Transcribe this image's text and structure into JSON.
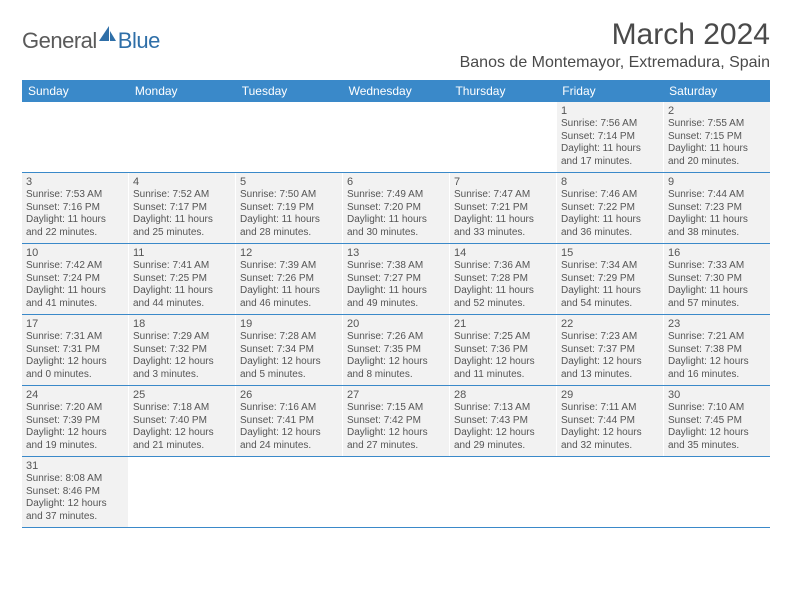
{
  "logo": {
    "text1": "General",
    "text2": "Blue"
  },
  "title": "March 2024",
  "location": "Banos de Montemayor, Extremadura, Spain",
  "colors": {
    "header_bg": "#3a89c9",
    "header_text": "#ffffff",
    "cell_bg": "#f2f2f2",
    "text": "#555555",
    "divider": "#3a89c9"
  },
  "dayNames": [
    "Sunday",
    "Monday",
    "Tuesday",
    "Wednesday",
    "Thursday",
    "Friday",
    "Saturday"
  ],
  "weeks": [
    [
      null,
      null,
      null,
      null,
      null,
      {
        "n": "1",
        "sr": "7:56 AM",
        "ss": "7:14 PM",
        "dl": "11 hours and 17 minutes."
      },
      {
        "n": "2",
        "sr": "7:55 AM",
        "ss": "7:15 PM",
        "dl": "11 hours and 20 minutes."
      }
    ],
    [
      {
        "n": "3",
        "sr": "7:53 AM",
        "ss": "7:16 PM",
        "dl": "11 hours and 22 minutes."
      },
      {
        "n": "4",
        "sr": "7:52 AM",
        "ss": "7:17 PM",
        "dl": "11 hours and 25 minutes."
      },
      {
        "n": "5",
        "sr": "7:50 AM",
        "ss": "7:19 PM",
        "dl": "11 hours and 28 minutes."
      },
      {
        "n": "6",
        "sr": "7:49 AM",
        "ss": "7:20 PM",
        "dl": "11 hours and 30 minutes."
      },
      {
        "n": "7",
        "sr": "7:47 AM",
        "ss": "7:21 PM",
        "dl": "11 hours and 33 minutes."
      },
      {
        "n": "8",
        "sr": "7:46 AM",
        "ss": "7:22 PM",
        "dl": "11 hours and 36 minutes."
      },
      {
        "n": "9",
        "sr": "7:44 AM",
        "ss": "7:23 PM",
        "dl": "11 hours and 38 minutes."
      }
    ],
    [
      {
        "n": "10",
        "sr": "7:42 AM",
        "ss": "7:24 PM",
        "dl": "11 hours and 41 minutes."
      },
      {
        "n": "11",
        "sr": "7:41 AM",
        "ss": "7:25 PM",
        "dl": "11 hours and 44 minutes."
      },
      {
        "n": "12",
        "sr": "7:39 AM",
        "ss": "7:26 PM",
        "dl": "11 hours and 46 minutes."
      },
      {
        "n": "13",
        "sr": "7:38 AM",
        "ss": "7:27 PM",
        "dl": "11 hours and 49 minutes."
      },
      {
        "n": "14",
        "sr": "7:36 AM",
        "ss": "7:28 PM",
        "dl": "11 hours and 52 minutes."
      },
      {
        "n": "15",
        "sr": "7:34 AM",
        "ss": "7:29 PM",
        "dl": "11 hours and 54 minutes."
      },
      {
        "n": "16",
        "sr": "7:33 AM",
        "ss": "7:30 PM",
        "dl": "11 hours and 57 minutes."
      }
    ],
    [
      {
        "n": "17",
        "sr": "7:31 AM",
        "ss": "7:31 PM",
        "dl": "12 hours and 0 minutes."
      },
      {
        "n": "18",
        "sr": "7:29 AM",
        "ss": "7:32 PM",
        "dl": "12 hours and 3 minutes."
      },
      {
        "n": "19",
        "sr": "7:28 AM",
        "ss": "7:34 PM",
        "dl": "12 hours and 5 minutes."
      },
      {
        "n": "20",
        "sr": "7:26 AM",
        "ss": "7:35 PM",
        "dl": "12 hours and 8 minutes."
      },
      {
        "n": "21",
        "sr": "7:25 AM",
        "ss": "7:36 PM",
        "dl": "12 hours and 11 minutes."
      },
      {
        "n": "22",
        "sr": "7:23 AM",
        "ss": "7:37 PM",
        "dl": "12 hours and 13 minutes."
      },
      {
        "n": "23",
        "sr": "7:21 AM",
        "ss": "7:38 PM",
        "dl": "12 hours and 16 minutes."
      }
    ],
    [
      {
        "n": "24",
        "sr": "7:20 AM",
        "ss": "7:39 PM",
        "dl": "12 hours and 19 minutes."
      },
      {
        "n": "25",
        "sr": "7:18 AM",
        "ss": "7:40 PM",
        "dl": "12 hours and 21 minutes."
      },
      {
        "n": "26",
        "sr": "7:16 AM",
        "ss": "7:41 PM",
        "dl": "12 hours and 24 minutes."
      },
      {
        "n": "27",
        "sr": "7:15 AM",
        "ss": "7:42 PM",
        "dl": "12 hours and 27 minutes."
      },
      {
        "n": "28",
        "sr": "7:13 AM",
        "ss": "7:43 PM",
        "dl": "12 hours and 29 minutes."
      },
      {
        "n": "29",
        "sr": "7:11 AM",
        "ss": "7:44 PM",
        "dl": "12 hours and 32 minutes."
      },
      {
        "n": "30",
        "sr": "7:10 AM",
        "ss": "7:45 PM",
        "dl": "12 hours and 35 minutes."
      }
    ],
    [
      {
        "n": "31",
        "sr": "8:08 AM",
        "ss": "8:46 PM",
        "dl": "12 hours and 37 minutes."
      },
      null,
      null,
      null,
      null,
      null,
      null
    ]
  ],
  "labels": {
    "sunrise": "Sunrise:",
    "sunset": "Sunset:",
    "daylight": "Daylight:"
  }
}
